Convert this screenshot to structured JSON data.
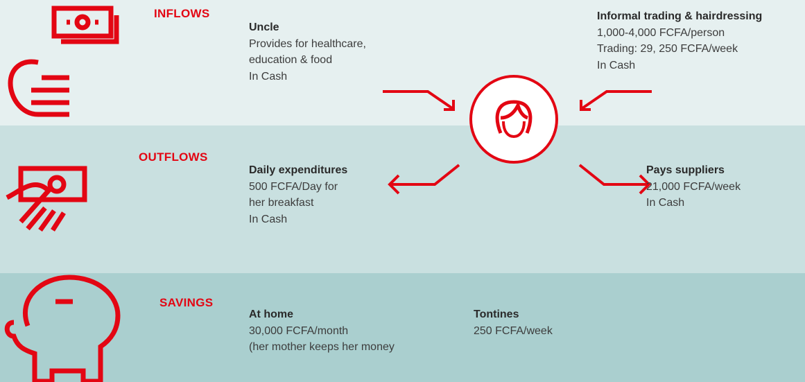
{
  "sections": [
    {
      "label": "INFLOWS",
      "items": [
        {
          "title": "Uncle",
          "lines": [
            "Provides for healthcare,",
            "education & food",
            "In Cash"
          ]
        },
        {
          "title": "Informal trading & hairdressing",
          "lines": [
            "1,000-4,000 FCFA/person",
            "Trading: 29, 250 FCFA/week",
            "In Cash"
          ]
        }
      ]
    },
    {
      "label": "OUTFLOWS",
      "items": [
        {
          "title": "Daily expenditures",
          "lines": [
            "500 FCFA/Day for",
            "her breakfast",
            "In Cash"
          ]
        },
        {
          "title": "Pays suppliers",
          "lines": [
            "21,000 FCFA/week",
            "In Cash"
          ]
        }
      ]
    },
    {
      "label": "SAVINGS",
      "items": [
        {
          "title": "At home",
          "lines": [
            "30,000 FCFA/month",
            "(her mother keeps her money"
          ]
        },
        {
          "title": "Tontines",
          "lines": [
            "250 FCFA/week"
          ]
        }
      ]
    }
  ]
}
